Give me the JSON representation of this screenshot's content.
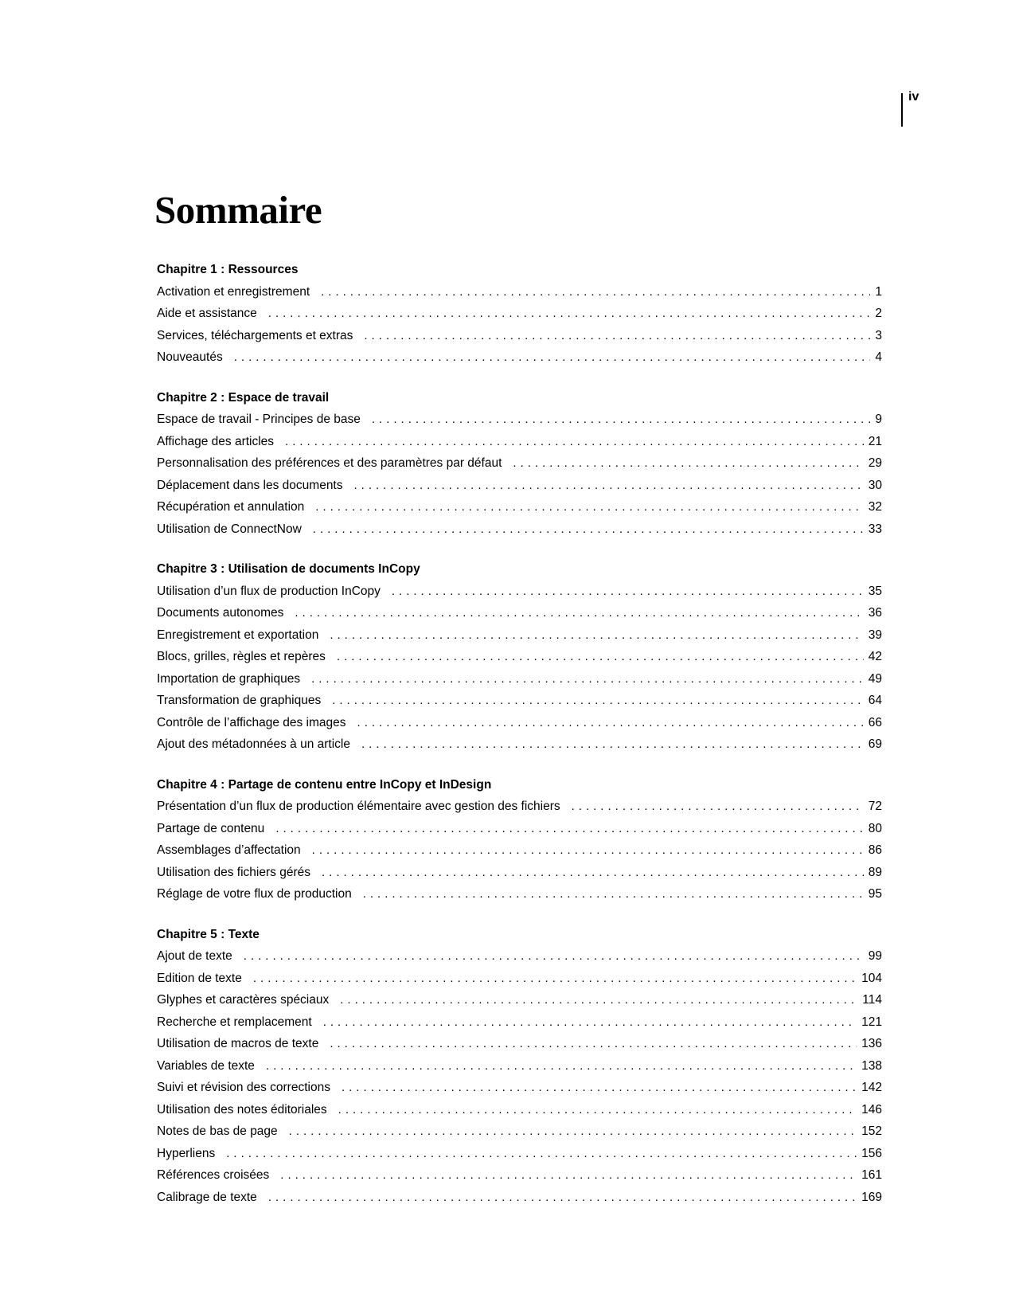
{
  "page": {
    "folio": "iv",
    "title": "Sommaire"
  },
  "toc": {
    "sections": [
      {
        "heading": "Chapitre 1 : Ressources",
        "entries": [
          {
            "label": "Activation et enregistrement",
            "page": "1"
          },
          {
            "label": "Aide et assistance",
            "page": "2"
          },
          {
            "label": "Services, téléchargements et extras",
            "page": "3"
          },
          {
            "label": "Nouveautés",
            "page": "4"
          }
        ]
      },
      {
        "heading": "Chapitre 2 : Espace de travail",
        "entries": [
          {
            "label": "Espace de travail - Principes de base",
            "page": "9"
          },
          {
            "label": "Affichage des articles",
            "page": "21"
          },
          {
            "label": "Personnalisation des préférences et des paramètres par défaut",
            "page": "29"
          },
          {
            "label": "Déplacement dans les documents",
            "page": "30"
          },
          {
            "label": "Récupération et annulation",
            "page": "32"
          },
          {
            "label": "Utilisation de ConnectNow",
            "page": "33"
          }
        ]
      },
      {
        "heading": "Chapitre 3 : Utilisation de documents InCopy",
        "entries": [
          {
            "label": "Utilisation d’un flux de production InCopy",
            "page": "35"
          },
          {
            "label": "Documents autonomes",
            "page": "36"
          },
          {
            "label": "Enregistrement et exportation",
            "page": "39"
          },
          {
            "label": "Blocs, grilles, règles et repères",
            "page": "42"
          },
          {
            "label": "Importation de graphiques",
            "page": "49"
          },
          {
            "label": "Transformation de graphiques",
            "page": "64"
          },
          {
            "label": "Contrôle de l’affichage des images",
            "page": "66"
          },
          {
            "label": "Ajout des métadonnées à un article",
            "page": "69"
          }
        ]
      },
      {
        "heading": "Chapitre 4 : Partage de contenu entre InCopy et InDesign",
        "entries": [
          {
            "label": "Présentation d’un flux de production élémentaire avec gestion des fichiers",
            "page": "72"
          },
          {
            "label": "Partage de contenu",
            "page": "80"
          },
          {
            "label": "Assemblages d’affectation",
            "page": "86"
          },
          {
            "label": "Utilisation des fichiers gérés",
            "page": "89"
          },
          {
            "label": "Réglage de votre flux de production",
            "page": "95"
          }
        ]
      },
      {
        "heading": "Chapitre 5 : Texte",
        "entries": [
          {
            "label": "Ajout de texte",
            "page": "99"
          },
          {
            "label": "Edition de texte",
            "page": "104"
          },
          {
            "label": "Glyphes et caractères spéciaux",
            "page": "114"
          },
          {
            "label": "Recherche et remplacement",
            "page": "121"
          },
          {
            "label": "Utilisation de macros de texte",
            "page": "136"
          },
          {
            "label": "Variables de texte",
            "page": "138"
          },
          {
            "label": "Suivi et révision des corrections",
            "page": "142"
          },
          {
            "label": "Utilisation des notes éditoriales",
            "page": "146"
          },
          {
            "label": "Notes de bas de page",
            "page": "152"
          },
          {
            "label": "Hyperliens",
            "page": "156"
          },
          {
            "label": "Références croisées",
            "page": "161"
          },
          {
            "label": "Calibrage de texte",
            "page": "169"
          }
        ]
      }
    ]
  }
}
